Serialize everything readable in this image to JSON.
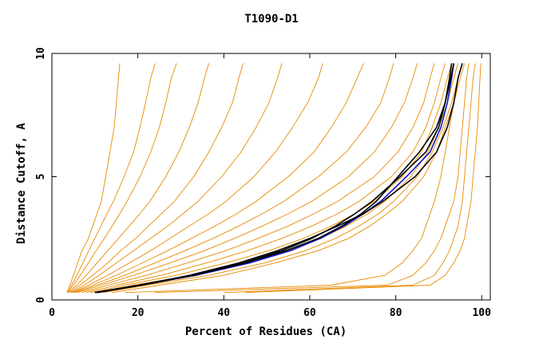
{
  "chart_data": {
    "type": "line",
    "title": "T1090-D1",
    "xlabel": "Percent of Residues (CA)",
    "ylabel": "Distance Cutoff, A",
    "xlim": [
      0,
      102
    ],
    "ylim": [
      0,
      10
    ],
    "x_ticks": [
      0,
      20,
      40,
      60,
      80,
      100
    ],
    "y_ticks": [
      0,
      5,
      10
    ],
    "grid": false,
    "legend": "none",
    "colors": {
      "background_curves": "#e88a00",
      "highlight_blue": "#1414c8",
      "highlight_black": "#000000",
      "axes": "#000000"
    },
    "y_levels": [
      0.3,
      0.6,
      1.0,
      1.5,
      2.0,
      2.5,
      3.0,
      3.5,
      4.0,
      5.0,
      6.0,
      7.0,
      8.0,
      9.0,
      9.6
    ],
    "background_series": [
      {
        "x": [
          3.5,
          4.2,
          5.0,
          6.0,
          7.0,
          8.5,
          9.5,
          10.5,
          11.5,
          12.5,
          13.5,
          14.5,
          15.0,
          15.5,
          15.8
        ]
      },
      {
        "x": [
          3.6,
          4.6,
          5.8,
          7.2,
          8.6,
          10.0,
          11.4,
          12.8,
          14.3,
          16.8,
          19.0,
          20.5,
          21.8,
          23.0,
          24.0
        ]
      },
      {
        "x": [
          3.8,
          5.0,
          6.6,
          8.5,
          10.3,
          12.2,
          14.0,
          15.8,
          17.5,
          20.5,
          23.0,
          25.0,
          26.5,
          27.8,
          29.0
        ]
      },
      {
        "x": [
          4.0,
          5.8,
          8.0,
          10.5,
          13.0,
          15.5,
          18.0,
          20.5,
          22.8,
          26.5,
          29.5,
          32.0,
          34.0,
          35.5,
          36.5
        ]
      },
      {
        "x": [
          4.2,
          6.5,
          9.5,
          13.0,
          16.0,
          19.5,
          22.5,
          25.5,
          28.5,
          33.0,
          36.5,
          39.5,
          42.0,
          43.5,
          44.5
        ]
      },
      {
        "x": [
          4.5,
          7.5,
          11.0,
          15.0,
          19.0,
          23.0,
          27.0,
          30.5,
          34.0,
          39.5,
          44.0,
          47.5,
          50.5,
          52.5,
          53.5
        ]
      },
      {
        "x": [
          4.8,
          8.5,
          13.0,
          18.0,
          23.0,
          27.5,
          32.0,
          36.5,
          40.5,
          47.0,
          52.0,
          56.0,
          59.5,
          62.0,
          63.0
        ]
      },
      {
        "x": [
          5.0,
          9.5,
          15.0,
          21.0,
          27.0,
          32.5,
          38.0,
          43.0,
          47.5,
          55.0,
          61.0,
          65.0,
          68.5,
          71.0,
          72.5
        ]
      },
      {
        "x": [
          5.5,
          10.5,
          17.0,
          24.0,
          31.0,
          37.5,
          43.5,
          49.0,
          54.0,
          62.0,
          68.5,
          73.0,
          76.5,
          78.5,
          79.5
        ]
      },
      {
        "x": [
          6.0,
          11.5,
          19.0,
          27.5,
          35.5,
          42.5,
          49.0,
          55.0,
          60.5,
          69.0,
          75.0,
          79.0,
          82.0,
          84.0,
          85.0
        ]
      },
      {
        "x": [
          7.0,
          13.0,
          22.0,
          31.5,
          40.5,
          48.0,
          55.0,
          61.0,
          66.5,
          75.0,
          80.5,
          84.0,
          86.5,
          88.0,
          89.0
        ]
      },
      {
        "x": [
          8.0,
          15.0,
          25.5,
          36.0,
          45.5,
          53.5,
          60.5,
          66.5,
          71.5,
          79.0,
          84.0,
          87.0,
          89.0,
          90.5,
          91.5
        ]
      },
      {
        "x": [
          9.0,
          17.0,
          29.0,
          40.5,
          50.5,
          58.5,
          65.0,
          70.5,
          75.0,
          81.5,
          86.0,
          88.5,
          90.5,
          92.0,
          93.0
        ]
      },
      {
        "x": [
          10.0,
          19.0,
          32.5,
          45.0,
          55.0,
          62.5,
          68.5,
          73.5,
          77.5,
          83.5,
          87.5,
          90.0,
          92.0,
          93.5,
          94.5
        ]
      },
      {
        "x": [
          12.0,
          22.0,
          36.5,
          49.5,
          59.0,
          66.0,
          71.5,
          76.0,
          79.5,
          85.0,
          88.5,
          91.0,
          93.0,
          94.5,
          95.5
        ]
      },
      {
        "x": [
          14.0,
          25.0,
          40.0,
          52.0,
          62.0,
          69.0,
          74.0,
          78.0,
          81.5,
          86.5,
          89.5,
          91.5,
          93.5,
          95.0,
          96.0
        ]
      },
      {
        "x": [
          17.0,
          65.0,
          77.5,
          81.5,
          84.0,
          86.0,
          87.0,
          88.0,
          89.0,
          90.5,
          91.5,
          92.5,
          93.5,
          94.5,
          95.5
        ]
      },
      {
        "x": [
          24.0,
          78.0,
          84.0,
          87.0,
          89.0,
          90.5,
          91.5,
          92.5,
          93.5,
          94.5,
          95.0,
          95.5,
          96.0,
          96.5,
          97.0
        ]
      },
      {
        "x": [
          40.0,
          84.0,
          89.0,
          91.0,
          92.5,
          93.5,
          94.5,
          95.0,
          95.5,
          96.0,
          96.5,
          97.0,
          97.5,
          98.0,
          98.5
        ]
      },
      {
        "x": [
          45.0,
          88.0,
          91.5,
          93.5,
          95.0,
          96.0,
          96.5,
          97.0,
          97.5,
          98.0,
          98.5,
          99.0,
          99.3,
          99.6,
          99.8
        ]
      }
    ],
    "highlight_series": [
      {
        "color": "#1414c8",
        "x": [
          10.0,
          20.5,
          33.5,
          46.0,
          55.5,
          62.5,
          68.0,
          72.5,
          76.5,
          82.5,
          88.0,
          90.5,
          92.0,
          93.0,
          93.5
        ]
      },
      {
        "color": "#000000",
        "x": [
          10.0,
          20.0,
          32.5,
          44.5,
          53.5,
          60.5,
          66.0,
          70.5,
          74.5,
          81.0,
          87.0,
          90.0,
          91.5,
          92.5,
          93.0
        ]
      },
      {
        "color": "#000000",
        "x": [
          10.5,
          21.0,
          33.0,
          45.0,
          54.5,
          62.0,
          67.5,
          72.0,
          75.5,
          80.5,
          85.5,
          89.5,
          91.5,
          92.8,
          93.5
        ]
      },
      {
        "color": "#000000",
        "x": [
          10.5,
          20.5,
          32.0,
          43.5,
          52.5,
          60.0,
          66.5,
          72.5,
          77.0,
          84.5,
          89.5,
          92.0,
          93.5,
          94.5,
          95.5
        ]
      }
    ]
  }
}
